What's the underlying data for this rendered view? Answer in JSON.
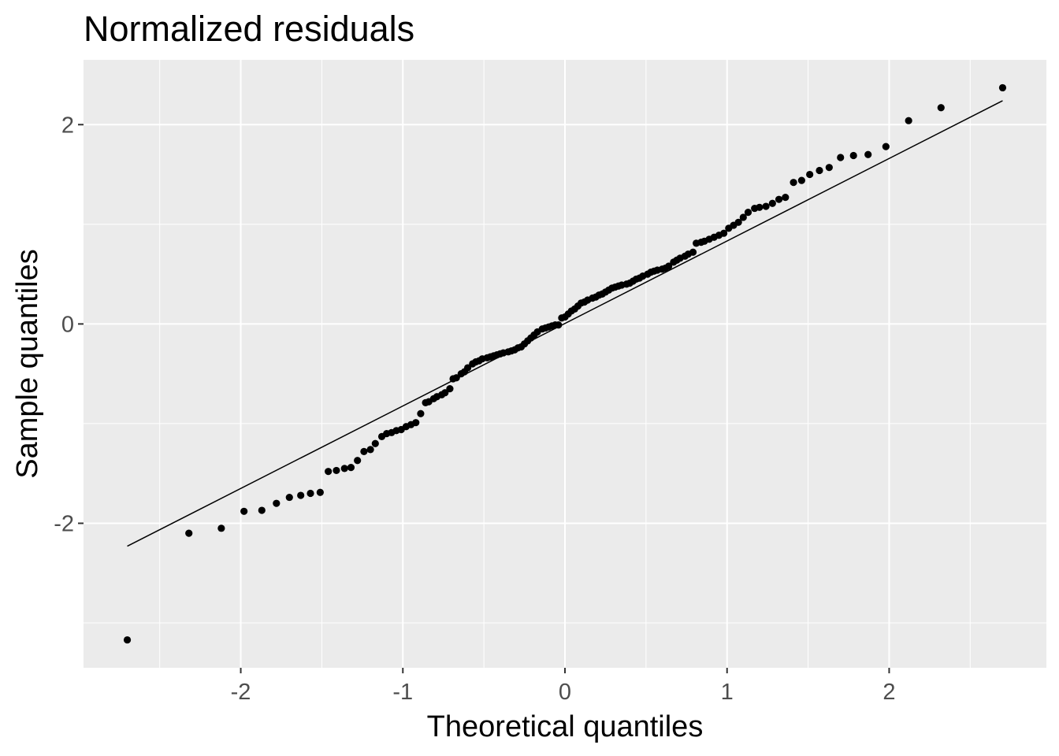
{
  "chart_data": {
    "type": "scatter",
    "title": "Normalized residuals",
    "xlabel": "Theoretical quantiles",
    "ylabel": "Sample quantiles",
    "xlim": [
      -2.97,
      2.97
    ],
    "ylim": [
      -3.45,
      2.65
    ],
    "x_ticks": [
      -2,
      -1,
      0,
      1,
      2
    ],
    "x_tick_labels": [
      "-2",
      "-1",
      "0",
      "1",
      "2"
    ],
    "y_ticks": [
      -2,
      0,
      2
    ],
    "y_tick_labels": [
      "-2",
      "0",
      "2"
    ],
    "grid": true,
    "background": "#ebebeb",
    "grid_color": "#ffffff",
    "point_color": "#000000",
    "reference_line": {
      "x": [
        -2.7,
        2.7
      ],
      "y": [
        -2.23,
        2.24
      ]
    },
    "series": [
      {
        "points": [
          [
            -2.7,
            -3.17
          ],
          [
            -2.32,
            -2.1
          ],
          [
            -2.12,
            -2.05
          ],
          [
            -1.98,
            -1.88
          ],
          [
            -1.87,
            -1.87
          ],
          [
            -1.78,
            -1.8
          ],
          [
            -1.7,
            -1.74
          ],
          [
            -1.63,
            -1.72
          ],
          [
            -1.57,
            -1.7
          ],
          [
            -1.51,
            -1.69
          ],
          [
            -1.46,
            -1.48
          ],
          [
            -1.41,
            -1.47
          ],
          [
            -1.36,
            -1.45
          ],
          [
            -1.32,
            -1.44
          ],
          [
            -1.28,
            -1.37
          ],
          [
            -1.24,
            -1.28
          ],
          [
            -1.2,
            -1.26
          ],
          [
            -1.17,
            -1.2
          ],
          [
            -1.13,
            -1.13
          ],
          [
            -1.1,
            -1.1
          ],
          [
            -1.07,
            -1.09
          ],
          [
            -1.04,
            -1.07
          ],
          [
            -1.01,
            -1.06
          ],
          [
            -0.98,
            -1.03
          ],
          [
            -0.95,
            -1.01
          ],
          [
            -0.92,
            -0.99
          ],
          [
            -0.89,
            -0.9
          ],
          [
            -0.86,
            -0.79
          ],
          [
            -0.84,
            -0.78
          ],
          [
            -0.81,
            -0.75
          ],
          [
            -0.79,
            -0.73
          ],
          [
            -0.76,
            -0.71
          ],
          [
            -0.74,
            -0.69
          ],
          [
            -0.71,
            -0.65
          ],
          [
            -0.69,
            -0.55
          ],
          [
            -0.67,
            -0.54
          ],
          [
            -0.64,
            -0.5
          ],
          [
            -0.62,
            -0.48
          ],
          [
            -0.6,
            -0.44
          ],
          [
            -0.57,
            -0.4
          ],
          [
            -0.55,
            -0.38
          ],
          [
            -0.53,
            -0.37
          ],
          [
            -0.51,
            -0.35
          ],
          [
            -0.48,
            -0.34
          ],
          [
            -0.46,
            -0.33
          ],
          [
            -0.44,
            -0.32
          ],
          [
            -0.42,
            -0.31
          ],
          [
            -0.4,
            -0.3
          ],
          [
            -0.38,
            -0.29
          ],
          [
            -0.35,
            -0.28
          ],
          [
            -0.33,
            -0.27
          ],
          [
            -0.31,
            -0.26
          ],
          [
            -0.29,
            -0.24
          ],
          [
            -0.27,
            -0.23
          ],
          [
            -0.25,
            -0.2
          ],
          [
            -0.23,
            -0.17
          ],
          [
            -0.21,
            -0.14
          ],
          [
            -0.19,
            -0.11
          ],
          [
            -0.17,
            -0.08
          ],
          [
            -0.14,
            -0.05
          ],
          [
            -0.12,
            -0.04
          ],
          [
            -0.1,
            -0.03
          ],
          [
            -0.08,
            -0.02
          ],
          [
            -0.06,
            -0.01
          ],
          [
            -0.04,
            -0.01
          ],
          [
            -0.02,
            0.06
          ],
          [
            0.0,
            0.07
          ],
          [
            0.02,
            0.1
          ],
          [
            0.04,
            0.13
          ],
          [
            0.06,
            0.15
          ],
          [
            0.08,
            0.18
          ],
          [
            0.1,
            0.21
          ],
          [
            0.12,
            0.22
          ],
          [
            0.14,
            0.24
          ],
          [
            0.17,
            0.26
          ],
          [
            0.19,
            0.27
          ],
          [
            0.21,
            0.29
          ],
          [
            0.23,
            0.3
          ],
          [
            0.25,
            0.32
          ],
          [
            0.27,
            0.34
          ],
          [
            0.29,
            0.36
          ],
          [
            0.31,
            0.37
          ],
          [
            0.33,
            0.38
          ],
          [
            0.35,
            0.39
          ],
          [
            0.38,
            0.4
          ],
          [
            0.4,
            0.41
          ],
          [
            0.42,
            0.43
          ],
          [
            0.44,
            0.45
          ],
          [
            0.46,
            0.46
          ],
          [
            0.48,
            0.48
          ],
          [
            0.51,
            0.5
          ],
          [
            0.53,
            0.52
          ],
          [
            0.55,
            0.53
          ],
          [
            0.57,
            0.54
          ],
          [
            0.6,
            0.55
          ],
          [
            0.62,
            0.56
          ],
          [
            0.64,
            0.58
          ],
          [
            0.67,
            0.62
          ],
          [
            0.69,
            0.64
          ],
          [
            0.71,
            0.66
          ],
          [
            0.74,
            0.68
          ],
          [
            0.76,
            0.7
          ],
          [
            0.79,
            0.72
          ],
          [
            0.81,
            0.81
          ],
          [
            0.84,
            0.82
          ],
          [
            0.86,
            0.83
          ],
          [
            0.89,
            0.85
          ],
          [
            0.92,
            0.87
          ],
          [
            0.95,
            0.89
          ],
          [
            0.98,
            0.91
          ],
          [
            1.01,
            0.96
          ],
          [
            1.04,
            0.99
          ],
          [
            1.07,
            1.02
          ],
          [
            1.1,
            1.07
          ],
          [
            1.13,
            1.12
          ],
          [
            1.17,
            1.16
          ],
          [
            1.2,
            1.17
          ],
          [
            1.24,
            1.18
          ],
          [
            1.28,
            1.21
          ],
          [
            1.32,
            1.25
          ],
          [
            1.36,
            1.27
          ],
          [
            1.41,
            1.42
          ],
          [
            1.46,
            1.44
          ],
          [
            1.51,
            1.5
          ],
          [
            1.57,
            1.54
          ],
          [
            1.63,
            1.57
          ],
          [
            1.7,
            1.67
          ],
          [
            1.78,
            1.69
          ],
          [
            1.87,
            1.7
          ],
          [
            1.98,
            1.78
          ],
          [
            2.12,
            2.04
          ],
          [
            2.32,
            2.17
          ],
          [
            2.7,
            2.37
          ]
        ]
      }
    ]
  }
}
